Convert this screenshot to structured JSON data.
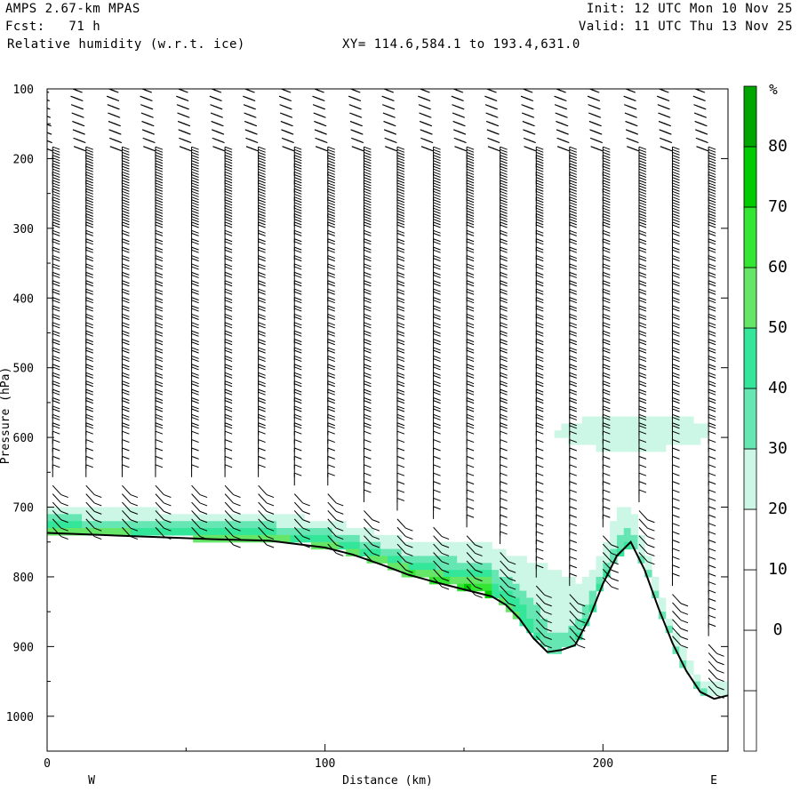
{
  "header": {
    "model": "AMPS 2.67-km MPAS",
    "forecast": "Fcst:   71 h",
    "field": "Relative humidity (w.r.t. ice)",
    "init": "Init: 12 UTC Mon 10 Nov 25",
    "valid": "Valid: 11 UTC Thu 13 Nov 25",
    "xy": "XY= 114.6,584.1 to 193.4,631.0"
  },
  "chart_data": {
    "type": "heatmap",
    "title": "Relative humidity (w.r.t. ice)",
    "xlabel": "Distance (km)",
    "ylabel": "Pressure (hPa)",
    "xlim": [
      0,
      245
    ],
    "ylim": [
      1050,
      100
    ],
    "x_ticks": [
      "0",
      "100",
      "200"
    ],
    "x_tick_values": [
      0,
      100,
      200
    ],
    "y_ticks": [
      "100",
      "200",
      "300",
      "400",
      "500",
      "600",
      "700",
      "800",
      "900",
      "1000"
    ],
    "y_tick_values": [
      100,
      200,
      300,
      400,
      500,
      600,
      700,
      800,
      900,
      1000
    ],
    "x_end_labels": {
      "left": "W",
      "right": "E"
    },
    "grid": false,
    "colorbar": {
      "unit": "%",
      "ticks": [
        "0",
        "10",
        "20",
        "30",
        "40",
        "50",
        "60",
        "70",
        "80"
      ],
      "levels": [
        -10,
        0,
        10,
        20,
        30,
        40,
        50,
        60,
        70,
        80,
        90
      ],
      "colors": [
        "#ffffff",
        "#ffffff",
        "#ffffff",
        "#ffffff",
        "#ccf7e6",
        "#66e6b3",
        "#33e699",
        "#66e666",
        "#33e633",
        "#00cc00",
        "#00a600"
      ]
    },
    "terrain": {
      "x": [
        0,
        20,
        40,
        60,
        80,
        100,
        110,
        120,
        130,
        140,
        150,
        160,
        165,
        170,
        175,
        180,
        185,
        190,
        195,
        200,
        205,
        210,
        215,
        220,
        225,
        230,
        235,
        240,
        245
      ],
      "p": [
        737,
        740,
        743,
        746,
        748,
        758,
        768,
        782,
        797,
        808,
        818,
        828,
        840,
        860,
        888,
        908,
        905,
        898,
        860,
        810,
        770,
        750,
        790,
        845,
        895,
        935,
        965,
        975,
        970
      ]
    },
    "wind_barb_columns_km": [
      2,
      14,
      27,
      39,
      52,
      64,
      76,
      89,
      101,
      114,
      126,
      139,
      151,
      163,
      176,
      188,
      200,
      213,
      225,
      238
    ]
  }
}
